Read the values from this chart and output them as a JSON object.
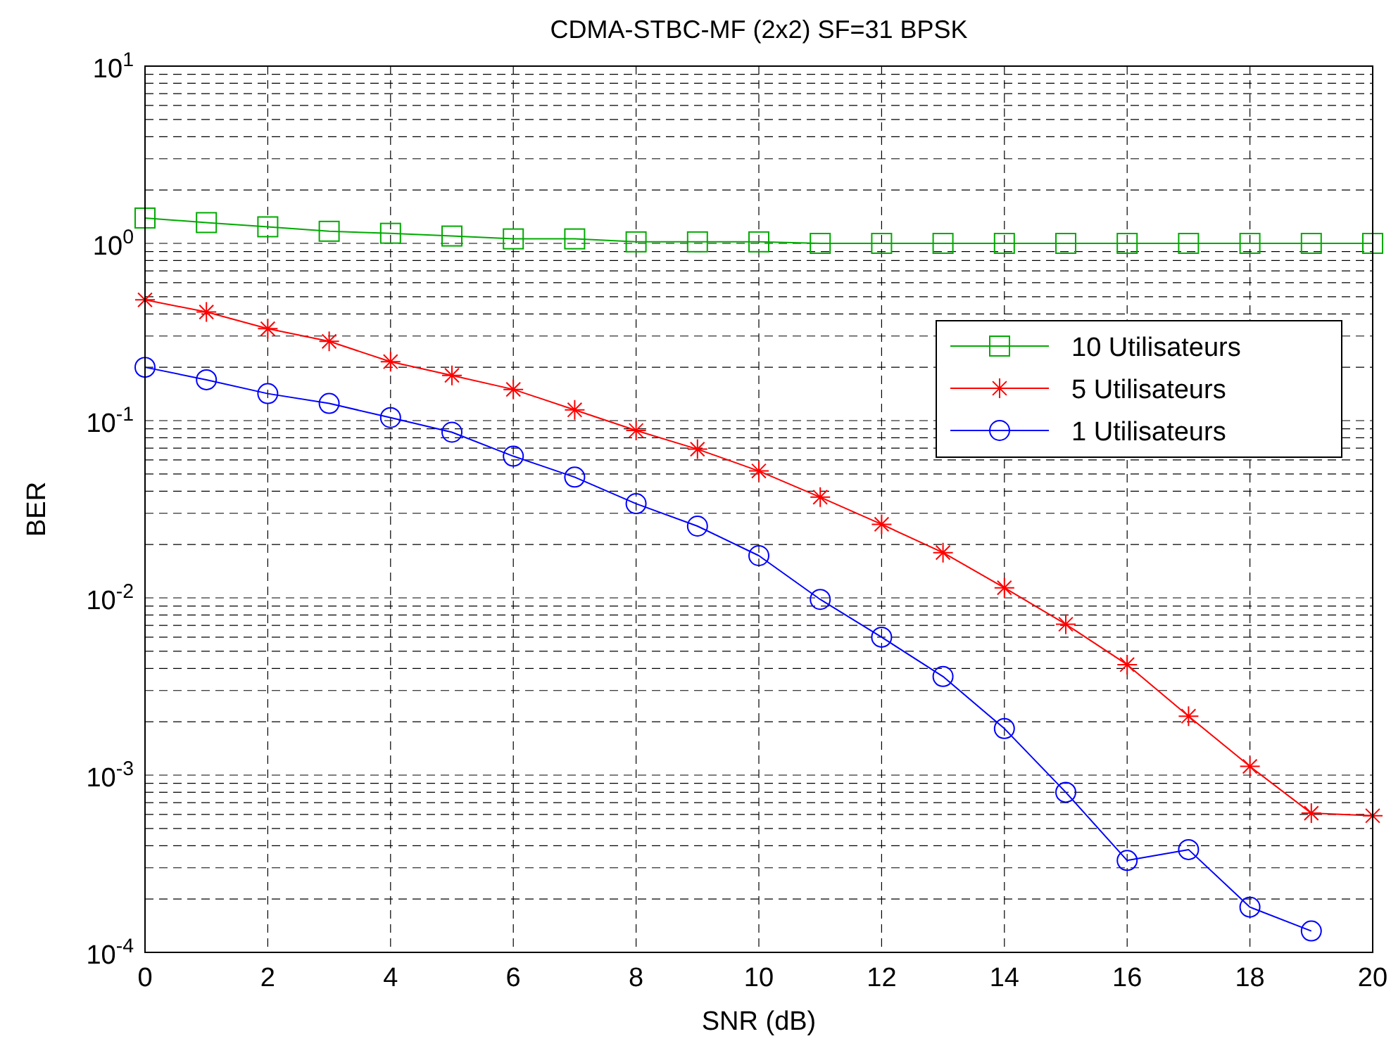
{
  "chart_data": {
    "type": "line",
    "title": "CDMA-STBC-MF (2x2) SF=31 BPSK",
    "xlabel": "SNR (dB)",
    "ylabel": "BER",
    "x": [
      0,
      1,
      2,
      3,
      4,
      5,
      6,
      7,
      8,
      9,
      10,
      11,
      12,
      13,
      14,
      15,
      16,
      17,
      18,
      19,
      20
    ],
    "series": [
      {
        "name": "10 Utilisateurs",
        "color": "#00aa00",
        "marker": "square",
        "values": [
          1.39,
          1.31,
          1.24,
          1.17,
          1.14,
          1.1,
          1.06,
          1.06,
          1.02,
          1.02,
          1.02,
          1.0,
          1.0,
          1.0,
          1.0,
          1.0,
          1.0,
          1.0,
          1.0,
          1.0,
          1.0
        ]
      },
      {
        "name": "5 Utilisateurs",
        "color": "#ff0000",
        "marker": "cross",
        "values": [
          0.48,
          0.41,
          0.33,
          0.28,
          0.215,
          0.18,
          0.15,
          0.115,
          0.088,
          0.069,
          0.052,
          0.037,
          0.026,
          0.018,
          0.0114,
          0.0071,
          0.0042,
          0.00215,
          0.00112,
          0.00061,
          0.00059
        ]
      },
      {
        "name": "1 Utilisateurs",
        "color": "#0000ff",
        "marker": "circle",
        "values": [
          0.2,
          0.17,
          0.142,
          0.125,
          0.104,
          0.086,
          0.063,
          0.048,
          0.034,
          0.0254,
          0.0173,
          0.0098,
          0.006,
          0.0036,
          0.00183,
          0.0008,
          0.00033,
          0.00038,
          0.00018,
          0.000132,
          null
        ]
      }
    ],
    "xlim": [
      0,
      20
    ],
    "xticks": [
      0,
      2,
      4,
      6,
      8,
      10,
      12,
      14,
      16,
      18,
      20
    ],
    "ylim": [
      0.0001,
      10
    ],
    "yticks": [
      {
        "value": 0.0001,
        "label": "10$^{-4}$"
      },
      {
        "value": 0.001,
        "label": "10$^{-3}$"
      },
      {
        "value": 0.01,
        "label": "10$^{-2}$"
      },
      {
        "value": 0.1,
        "label": "10$^{-1}$"
      },
      {
        "value": 1,
        "label": "10$^{0}$"
      },
      {
        "value": 10,
        "label": "10$^{1}$"
      }
    ],
    "log": true,
    "grid": true,
    "legend": "top right",
    "line_style": "solid"
  }
}
